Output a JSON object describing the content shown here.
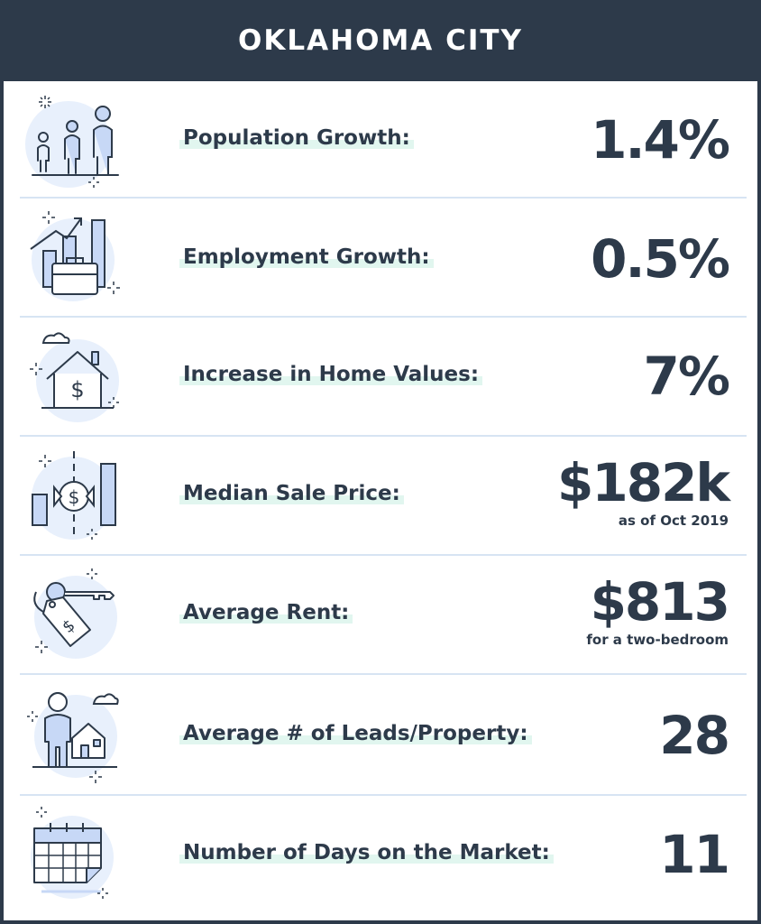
{
  "header": {
    "title": "OKLAHOMA CITY"
  },
  "colors": {
    "header_bg": "#2d3a4a",
    "text": "#2d3a4a",
    "icon_bg": "#e8f0fc",
    "icon_fill": "#c7d8f6",
    "label_highlight": "#e1f6ef",
    "divider": "#d7e4f3"
  },
  "stats": [
    {
      "icon": "family-icon",
      "label": "Population Growth:",
      "value": "1.4%",
      "sub": ""
    },
    {
      "icon": "employment-chart-icon",
      "label": "Employment Growth:",
      "value": "0.5%",
      "sub": ""
    },
    {
      "icon": "house-dollar-icon",
      "label": "Increase in Home Values:",
      "value": "7%",
      "sub": ""
    },
    {
      "icon": "price-chart-icon",
      "label": "Median Sale Price:",
      "value": "$182k",
      "sub": "as of Oct 2019"
    },
    {
      "icon": "key-tag-icon",
      "label": "Average Rent:",
      "value": "$813",
      "sub": "for a two-bedroom"
    },
    {
      "icon": "person-house-icon",
      "label": "Average # of Leads/Property:",
      "value": "28",
      "sub": ""
    },
    {
      "icon": "calendar-icon",
      "label": "Number of Days on the Market:",
      "value": "11",
      "sub": ""
    }
  ]
}
